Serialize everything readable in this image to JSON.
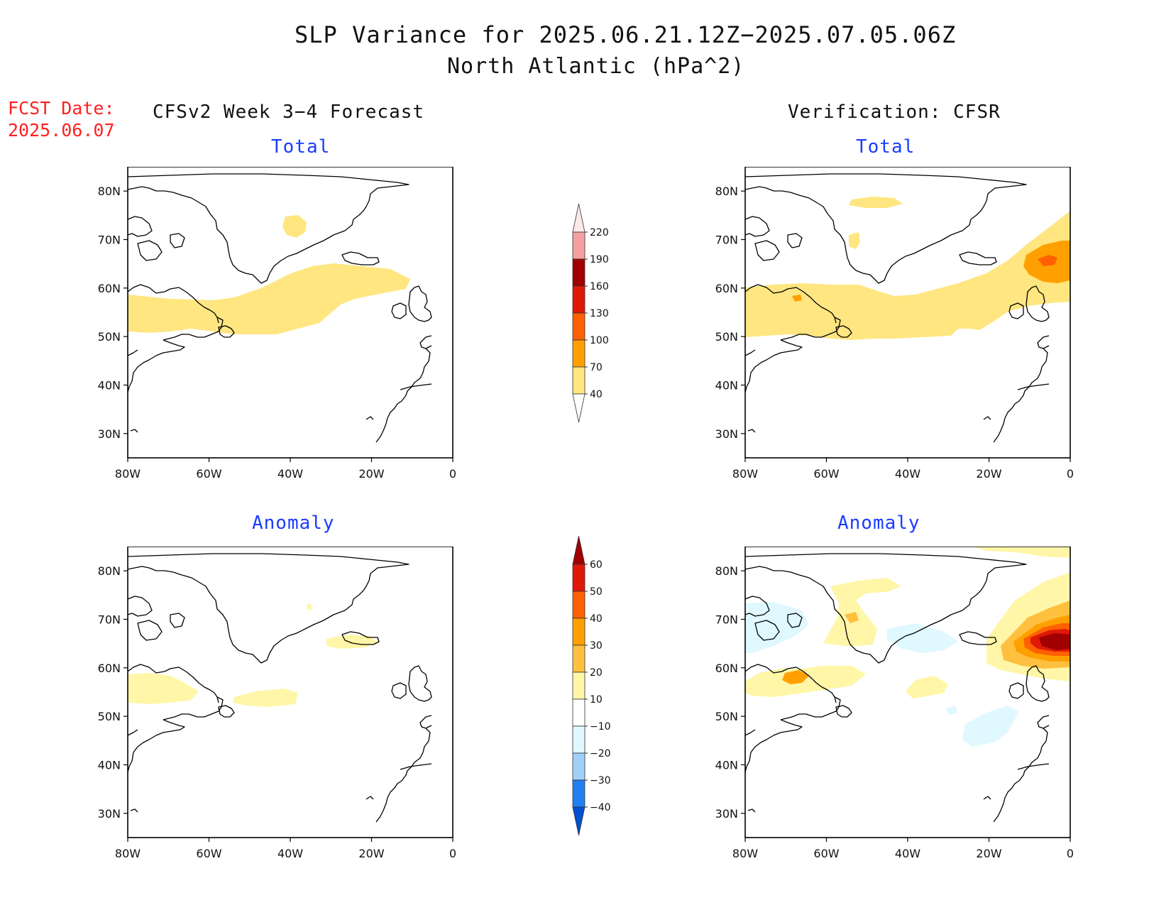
{
  "header": {
    "title": "SLP Variance for 2025.06.21.12Z−2025.07.05.06Z",
    "subtitle": "North Atlantic (hPa^2)",
    "fcst_label": "FCST Date:",
    "fcst_value": "2025.06.07"
  },
  "columns": {
    "left": "CFSv2 Week 3−4 Forecast",
    "right": "Verification: CFSR"
  },
  "panels": {
    "total": "Total",
    "anomaly": "Anomaly"
  },
  "axes": {
    "lat_labels": [
      "80N",
      "70N",
      "60N",
      "50N",
      "40N",
      "30N"
    ],
    "lon_labels": [
      "80W",
      "60W",
      "40W",
      "20W",
      "0"
    ]
  },
  "colorbars": {
    "total": {
      "levels": [
        "220",
        "190",
        "160",
        "130",
        "100",
        "70",
        "40"
      ],
      "colors": [
        "#ffe8e8",
        "#f4a0a0",
        "#a00000",
        "#e01808",
        "#ff6000",
        "#ffa000",
        "#ffe680"
      ]
    },
    "anomaly": {
      "levels": [
        "60",
        "50",
        "40",
        "30",
        "20",
        "10",
        "−10",
        "−20",
        "−30",
        "−40"
      ],
      "colors": [
        "#a00000",
        "#e01808",
        "#ff6000",
        "#ffa000",
        "#ffc040",
        "#fff6a8",
        "#ffffff",
        "#e0f8ff",
        "#a0d0f8",
        "#2080f0",
        "#0050d0"
      ]
    }
  }
}
